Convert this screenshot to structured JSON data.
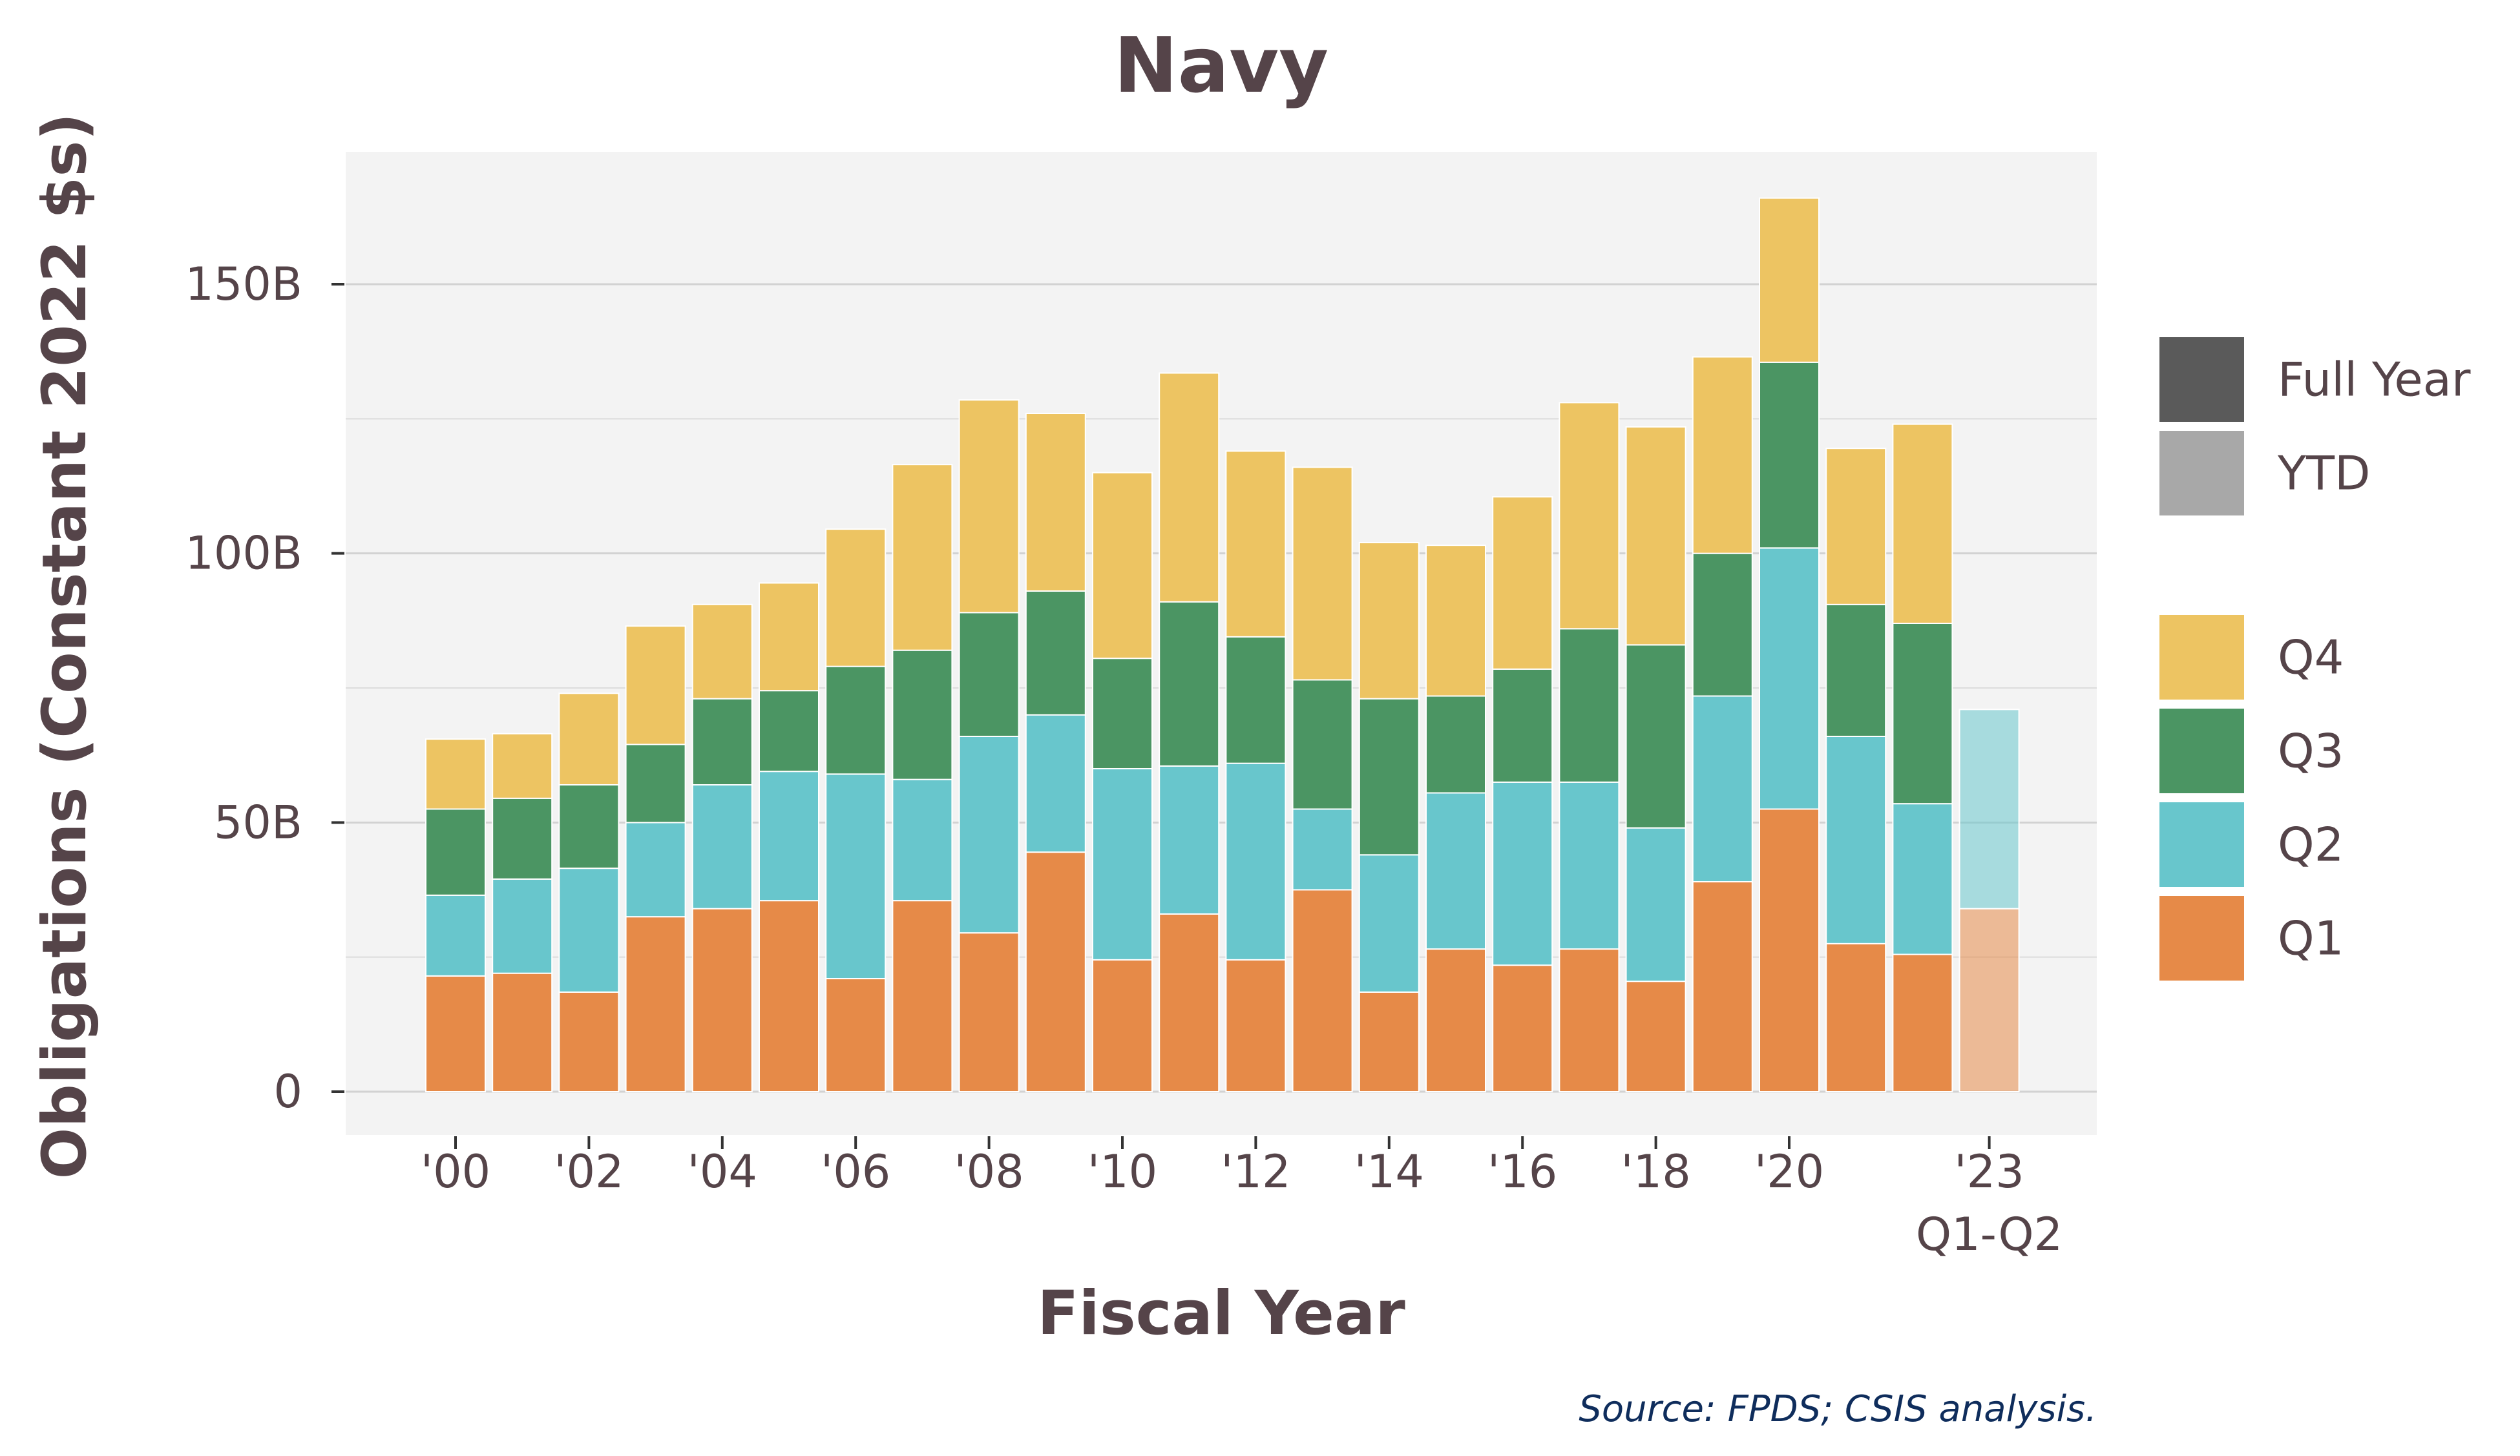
{
  "chart_data": {
    "type": "bar",
    "stacked": true,
    "title": "Navy",
    "xlabel": "Fiscal Year",
    "ylabel": "Obligations (Constant 2022 $s)",
    "ylim": [
      0,
      175
    ],
    "y_ticks": [
      {
        "value": 0,
        "label": "0"
      },
      {
        "value": 50,
        "label": "50B"
      },
      {
        "value": 100,
        "label": "100B"
      },
      {
        "value": 150,
        "label": "150B"
      }
    ],
    "x_ticks": [
      {
        "year": 2000,
        "label": "'00"
      },
      {
        "year": 2002,
        "label": "'02"
      },
      {
        "year": 2004,
        "label": "'04"
      },
      {
        "year": 2006,
        "label": "'06"
      },
      {
        "year": 2008,
        "label": "'08"
      },
      {
        "year": 2010,
        "label": "'10"
      },
      {
        "year": 2012,
        "label": "'12"
      },
      {
        "year": 2014,
        "label": "'14"
      },
      {
        "year": 2016,
        "label": "'16"
      },
      {
        "year": 2018,
        "label": "'18"
      },
      {
        "year": 2020,
        "label": "'20"
      },
      {
        "year": 2023,
        "label": "'23",
        "sublabel": "Q1-Q2"
      }
    ],
    "categories": [
      2000,
      2001,
      2002,
      2003,
      2004,
      2005,
      2006,
      2007,
      2008,
      2009,
      2010,
      2011,
      2012,
      2013,
      2014,
      2015,
      2016,
      2017,
      2018,
      2019,
      2020,
      2021,
      2022,
      2023
    ],
    "period": [
      "Full Year",
      "Full Year",
      "Full Year",
      "Full Year",
      "Full Year",
      "Full Year",
      "Full Year",
      "Full Year",
      "Full Year",
      "Full Year",
      "Full Year",
      "Full Year",
      "Full Year",
      "Full Year",
      "Full Year",
      "Full Year",
      "Full Year",
      "Full Year",
      "Full Year",
      "Full Year",
      "Full Year",
      "Full Year",
      "Full Year",
      "YTD"
    ],
    "series": [
      {
        "name": "Q1",
        "color": "#e68a48",
        "values": [
          21.5,
          22,
          18.5,
          32.5,
          34,
          35.5,
          21,
          35.5,
          29.5,
          44.5,
          24.5,
          33,
          24.5,
          37.5,
          18.5,
          26.5,
          23.5,
          26.5,
          20.5,
          39,
          52.5,
          27.5,
          25.5,
          34
        ]
      },
      {
        "name": "Q2",
        "color": "#68c6cc",
        "values": [
          15,
          17.5,
          23,
          17.5,
          23,
          24,
          38,
          22.5,
          36.5,
          25.5,
          35.5,
          27.5,
          36.5,
          15,
          25.5,
          29,
          34,
          31,
          28.5,
          34.5,
          48.5,
          38.5,
          28,
          37
        ]
      },
      {
        "name": "Q3",
        "color": "#4b9563",
        "values": [
          16,
          15,
          15.5,
          14.5,
          16,
          15,
          20,
          24,
          23,
          23,
          20.5,
          30.5,
          23.5,
          24,
          29,
          18,
          21,
          28.5,
          34,
          26.5,
          34.5,
          24.5,
          33.5,
          null
        ]
      },
      {
        "name": "Q4",
        "color": "#edc462",
        "values": [
          13,
          12,
          17,
          22,
          17.5,
          20,
          25.5,
          34.5,
          39.5,
          33,
          34.5,
          42.5,
          34.5,
          39.5,
          29,
          28,
          32,
          42,
          40.5,
          36.5,
          30.5,
          29,
          37,
          null
        ]
      }
    ],
    "legend": {
      "placement": "right",
      "period_items": [
        {
          "label": "Full Year",
          "color": "#5a5a5a"
        },
        {
          "label": "YTD",
          "color": "#a8a8a8"
        }
      ],
      "quarter_items": [
        {
          "label": "Q4",
          "color": "#edc462"
        },
        {
          "label": "Q3",
          "color": "#4b9563"
        },
        {
          "label": "Q2",
          "color": "#68c6cc"
        },
        {
          "label": "Q1",
          "color": "#e68a48"
        }
      ]
    },
    "grid": true,
    "panel_background": "#f3f3f3",
    "gridline_color": "#dcdcdc",
    "text_color": "#554449",
    "ytd_opacity": 0.55,
    "source": "Source: FPDS; CSIS analysis."
  }
}
